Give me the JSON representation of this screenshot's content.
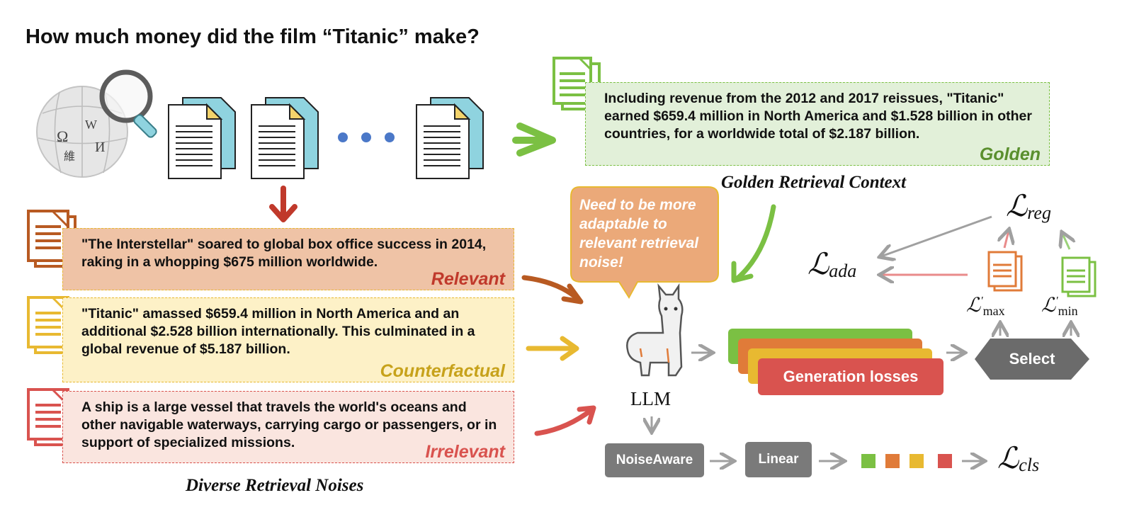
{
  "question": "How much money did the film “Titanic” make?",
  "golden": {
    "text": "Including revenue from the 2012 and 2017 reissues, \"Titanic\" earned $659.4 million in North America and $1.528 billion in other countries, for a worldwide total of $2.187 billion.",
    "tag": "Golden",
    "caption": "Golden Retrieval Context"
  },
  "noises": [
    {
      "text": "\"The Interstellar\" soared to global box office success in 2014, raking in a whopping $675 million worldwide.",
      "tag": "Relevant"
    },
    {
      "text": "\"Titanic\" amassed $659.4 million in North America and an additional $2.528 billion internationally. This culminated in a global revenue of $5.187 billion.",
      "tag": "Counterfactual"
    },
    {
      "text": "A ship is a large vessel that travels the world's oceans and other navigable waterways, carrying cargo or passengers, or in support of specialized missions.",
      "tag": "Irrelevant"
    }
  ],
  "noises_caption": "Diverse Retrieval Noises",
  "bubble": "Need to be more adaptable to relevant retrieval noise!",
  "llm_label": "LLM",
  "generation_losses": "Generation losses",
  "select": "Select",
  "noiseaware": "NoiseAware",
  "linear": "Linear",
  "losses": {
    "L_symbol": "ℒ",
    "reg": "reg",
    "ada": "ada",
    "cls": "cls",
    "max_sub": "max",
    "min_sub": "min",
    "prime": "′"
  },
  "colors": {
    "green": "#7bc043",
    "orange": "#e07b39",
    "yellow": "#e8b931",
    "red": "#d9534f",
    "gray": "#7a7a7a",
    "cyan": "#8fd3df",
    "blue_dot": "#4b78c8"
  }
}
